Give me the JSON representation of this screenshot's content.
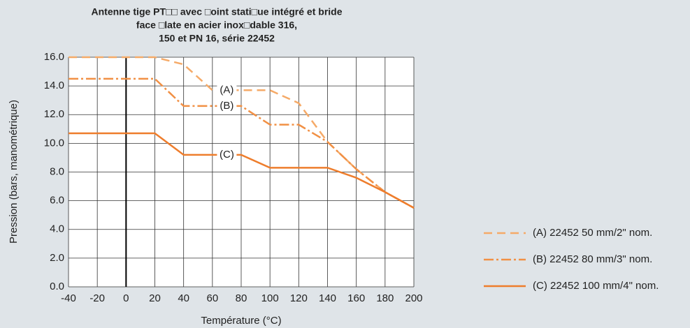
{
  "chart_data": {
    "type": "line",
    "title": [
      "Antenne tige PT□□ avec □oint stati□ue intégré et bride",
      "face □late en acier inox□dable 316,",
      "150 et PN 16, série 22452"
    ],
    "x_label": "Température (°C)",
    "y_label": "Pression (bars, manométrique)",
    "x": [
      -40,
      20,
      40,
      60,
      80,
      100,
      120,
      140,
      160,
      180,
      200
    ],
    "series": [
      {
        "name": "(A) 22452 50 mm/2\" nom.",
        "annotation": "(A)",
        "color": "#f5aa68",
        "dash": "dash",
        "values": [
          16,
          16,
          15.5,
          13.7,
          13.7,
          13.7,
          12.8,
          10.1,
          8.2,
          6.6,
          5.5
        ]
      },
      {
        "name": "(B) 22452 80 mm/3\" nom.",
        "annotation": "(B)",
        "color": "#f19044",
        "dash": "dashdot",
        "values": [
          14.5,
          14.5,
          12.6,
          12.6,
          12.6,
          11.3,
          11.3,
          10.1,
          8.2,
          6.6,
          5.5
        ]
      },
      {
        "name": "(C) 22452 100 mm/4\" nom.",
        "annotation": "(C)",
        "color": "#ee7d2c",
        "dash": "solid",
        "values": [
          10.7,
          10.7,
          9.2,
          9.2,
          9.2,
          8.3,
          8.3,
          8.3,
          7.6,
          6.6,
          5.5
        ]
      }
    ],
    "xlim": [
      -40,
      200
    ],
    "xticks": [
      -40,
      -20,
      0,
      20,
      40,
      60,
      80,
      100,
      120,
      140,
      160,
      180,
      200
    ],
    "ylim": [
      0,
      16
    ],
    "yticks": [
      {
        "value": 0,
        "label": "0.0"
      },
      {
        "value": 2,
        "label": "2.0"
      },
      {
        "value": 4,
        "label": "4.0"
      },
      {
        "value": 6,
        "label": "6.0"
      },
      {
        "value": 8,
        "label": "8.0"
      },
      {
        "value": 10,
        "label": "10.0"
      },
      {
        "value": 12,
        "label": "12.0"
      },
      {
        "value": 14,
        "label": "14.0"
      },
      {
        "value": 16,
        "label": "16.0"
      }
    ],
    "grid": true,
    "legend": "right"
  }
}
